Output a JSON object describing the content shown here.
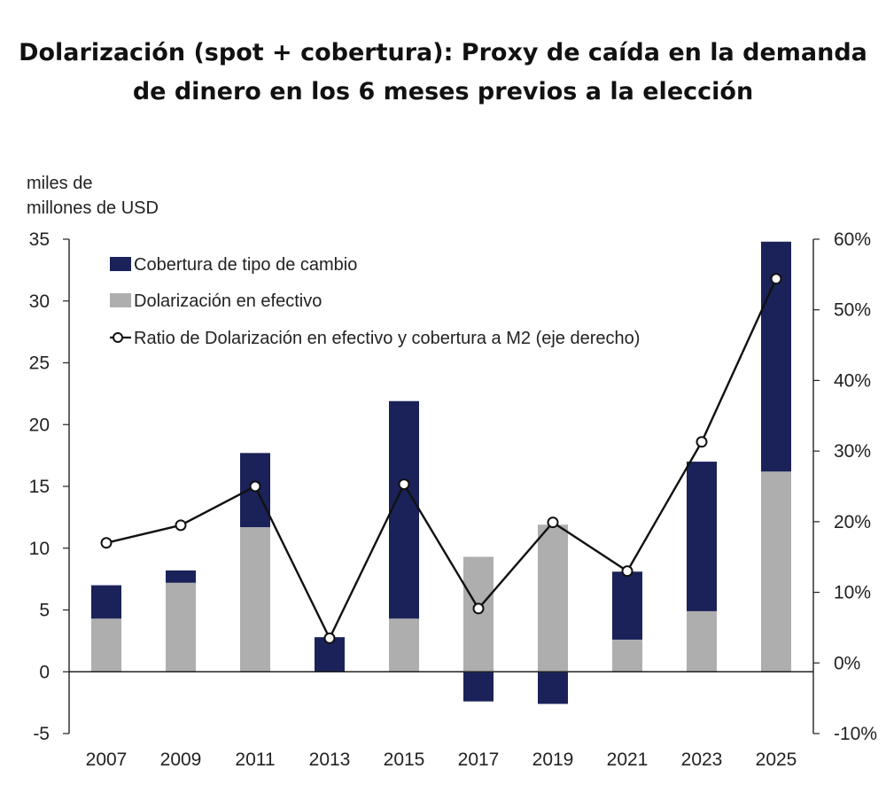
{
  "chart_data": {
    "type": "bar",
    "title_lines": [
      "Dolarización (spot + cobertura): Proxy de caída en la demanda",
      "de dinero en los 6 meses previos a la elección"
    ],
    "ylabel_lines": [
      "miles de",
      "millones de USD"
    ],
    "categories": [
      "2007",
      "2009",
      "2011",
      "2013",
      "2015",
      "2017",
      "2019",
      "2021",
      "2023",
      "2025"
    ],
    "ylim": [
      -5,
      35
    ],
    "yticks": [
      -5,
      0,
      5,
      10,
      15,
      20,
      25,
      30,
      35
    ],
    "y2lim": [
      -10,
      60
    ],
    "y2ticks": [
      -10,
      0,
      10,
      20,
      30,
      40,
      50,
      60
    ],
    "y2_tick_suffix": "%",
    "stacked": true,
    "legend_position": "top-left",
    "series": [
      {
        "name": "Cobertura de tipo de cambio",
        "axis": "left",
        "kind": "bar",
        "color": "#1b2259",
        "values": [
          2.7,
          1.0,
          6.0,
          2.8,
          17.6,
          -2.4,
          -2.6,
          5.5,
          12.1,
          18.6
        ]
      },
      {
        "name": "Dolarización en efectivo",
        "axis": "left",
        "kind": "bar",
        "color": "#aeaeae",
        "values": [
          4.3,
          7.2,
          11.7,
          0.0,
          4.3,
          9.3,
          11.9,
          2.6,
          4.9,
          16.2
        ]
      },
      {
        "name": "Ratio de Dolarización en efectivo y cobertura a M2 (eje derecho)",
        "axis": "right",
        "kind": "line",
        "color": "#111111",
        "values": [
          17.0,
          19.5,
          25.0,
          3.5,
          25.3,
          7.7,
          19.9,
          13.0,
          31.3,
          54.4
        ]
      }
    ]
  }
}
